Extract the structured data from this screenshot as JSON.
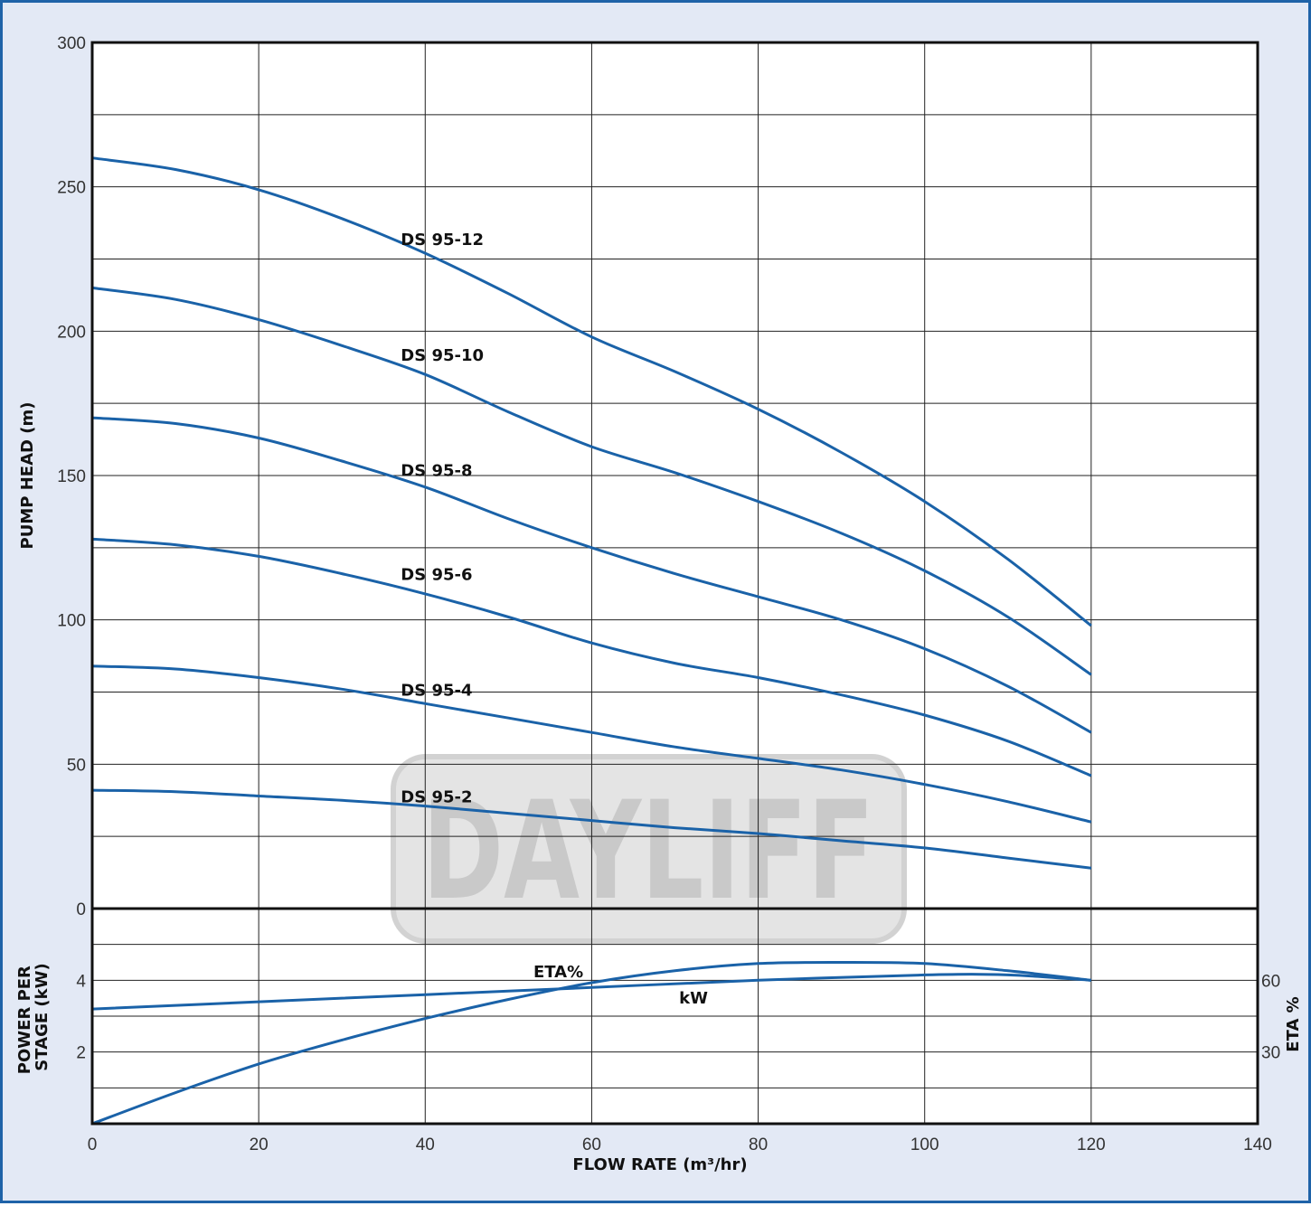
{
  "colors": {
    "frame_bg": "#e3e9f5",
    "frame_border": "#1f63a8",
    "curve": "#1a62a8",
    "grid": "#222222",
    "watermark": "#cfcfcf"
  },
  "watermark": "DAYLIFF",
  "chart_data": [
    {
      "type": "line",
      "title": "",
      "xlabel": "FLOW RATE (m³/hr)",
      "ylabel": "PUMP HEAD (m)",
      "xlim": [
        0,
        140
      ],
      "ylim": [
        0,
        300
      ],
      "x_ticks": [
        "0",
        "20",
        "40",
        "60",
        "80",
        "100",
        "120",
        "140"
      ],
      "y_ticks": [
        "0",
        "50",
        "100",
        "150",
        "200",
        "250",
        "300"
      ],
      "grid": true,
      "series": [
        {
          "name": "DS 95-12",
          "label_at": [
            40,
            232
          ],
          "points": [
            [
              0,
              260
            ],
            [
              10,
              256
            ],
            [
              20,
              249
            ],
            [
              30,
              239
            ],
            [
              40,
              227
            ],
            [
              50,
              213
            ],
            [
              60,
              198
            ],
            [
              70,
              186
            ],
            [
              80,
              173
            ],
            [
              90,
              158
            ],
            [
              100,
              141
            ],
            [
              110,
              121
            ],
            [
              120,
              98
            ]
          ]
        },
        {
          "name": "DS 95-10",
          "label_at": [
            40,
            192
          ],
          "points": [
            [
              0,
              215
            ],
            [
              10,
              211
            ],
            [
              20,
              204
            ],
            [
              30,
              195
            ],
            [
              40,
              185
            ],
            [
              50,
              172
            ],
            [
              60,
              160
            ],
            [
              70,
              151
            ],
            [
              80,
              141
            ],
            [
              90,
              130
            ],
            [
              100,
              117
            ],
            [
              110,
              101
            ],
            [
              120,
              81
            ]
          ]
        },
        {
          "name": "DS 95-8",
          "label_at": [
            40,
            152
          ],
          "points": [
            [
              0,
              170
            ],
            [
              10,
              168
            ],
            [
              20,
              163
            ],
            [
              30,
              155
            ],
            [
              40,
              146
            ],
            [
              50,
              135
            ],
            [
              60,
              125
            ],
            [
              70,
              116
            ],
            [
              80,
              108
            ],
            [
              90,
              100
            ],
            [
              100,
              90
            ],
            [
              110,
              77
            ],
            [
              120,
              61
            ]
          ]
        },
        {
          "name": "DS 95-6",
          "label_at": [
            40,
            116
          ],
          "points": [
            [
              0,
              128
            ],
            [
              10,
              126
            ],
            [
              20,
              122
            ],
            [
              30,
              116
            ],
            [
              40,
              109
            ],
            [
              50,
              101
            ],
            [
              60,
              92
            ],
            [
              70,
              85
            ],
            [
              80,
              80
            ],
            [
              90,
              74
            ],
            [
              100,
              67
            ],
            [
              110,
              58
            ],
            [
              120,
              46
            ]
          ]
        },
        {
          "name": "DS 95-4",
          "label_at": [
            40,
            76
          ],
          "points": [
            [
              0,
              84
            ],
            [
              10,
              83
            ],
            [
              20,
              80
            ],
            [
              30,
              76
            ],
            [
              40,
              71
            ],
            [
              50,
              66
            ],
            [
              60,
              61
            ],
            [
              70,
              56
            ],
            [
              80,
              52
            ],
            [
              90,
              48
            ],
            [
              100,
              43
            ],
            [
              110,
              37
            ],
            [
              120,
              30
            ]
          ]
        },
        {
          "name": "DS 95-2",
          "label_at": [
            40,
            39
          ],
          "points": [
            [
              0,
              41
            ],
            [
              10,
              40.5
            ],
            [
              20,
              39
            ],
            [
              30,
              37.5
            ],
            [
              40,
              35.5
            ],
            [
              50,
              33
            ],
            [
              60,
              30.5
            ],
            [
              70,
              28
            ],
            [
              80,
              26
            ],
            [
              90,
              23.5
            ],
            [
              100,
              21
            ],
            [
              110,
              17.5
            ],
            [
              120,
              14
            ]
          ]
        }
      ]
    },
    {
      "type": "line",
      "title": "",
      "xlabel": "FLOW RATE (m³/hr)",
      "ylabel": "POWER PER STAGE (kW)",
      "y2label": "ETA %",
      "xlim": [
        0,
        140
      ],
      "ylim": [
        0,
        6
      ],
      "y2lim": [
        0,
        90
      ],
      "x_ticks": [
        "0",
        "20",
        "40",
        "60",
        "80",
        "100",
        "120",
        "140"
      ],
      "y_ticks": [
        "2",
        "4"
      ],
      "y2_ticks": [
        "30",
        "60"
      ],
      "grid": true,
      "series": [
        {
          "name": "kW",
          "axis": "left",
          "label_at": [
            70.5,
            3.5
          ],
          "points": [
            [
              0,
              3.2
            ],
            [
              20,
              3.4
            ],
            [
              40,
              3.6
            ],
            [
              60,
              3.8
            ],
            [
              80,
              4.0
            ],
            [
              100,
              4.15
            ],
            [
              110,
              4.15
            ],
            [
              120,
              4.0
            ]
          ]
        },
        {
          "name": "ETA%",
          "axis": "right",
          "label_at": [
            53,
            63.5
          ],
          "points": [
            [
              0,
              0
            ],
            [
              10,
              13
            ],
            [
              20,
              25
            ],
            [
              30,
              35
            ],
            [
              40,
              44
            ],
            [
              50,
              52
            ],
            [
              60,
              59
            ],
            [
              70,
              64
            ],
            [
              80,
              67
            ],
            [
              90,
              67.5
            ],
            [
              100,
              67
            ],
            [
              110,
              64
            ],
            [
              120,
              60
            ]
          ]
        }
      ]
    }
  ]
}
